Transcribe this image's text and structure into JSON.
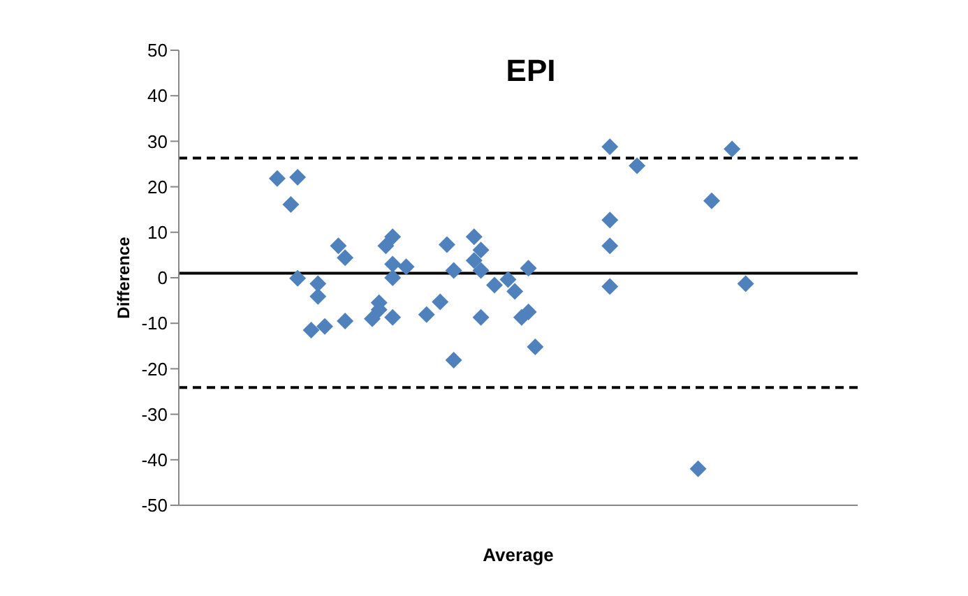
{
  "chart_data": {
    "type": "scatter",
    "title": "EPI",
    "xlabel": "Average",
    "ylabel": "Difference",
    "categories": [
      null,
      null,
      null,
      null,
      null,
      null,
      null,
      null,
      null,
      null,
      null,
      null,
      null,
      null,
      null,
      null,
      null,
      null,
      null,
      null,
      null,
      null,
      null,
      null,
      null,
      null,
      null,
      null,
      null,
      null,
      null,
      null,
      null,
      null,
      null,
      null,
      null,
      null,
      null,
      null,
      null,
      null,
      null,
      null,
      null,
      null,
      null,
      null,
      null,
      null,
      null,
      null,
      null,
      null,
      null,
      null,
      null,
      null,
      null,
      null,
      null,
      null,
      null,
      null,
      null,
      null,
      null,
      null,
      null,
      null,
      null,
      null,
      null,
      null,
      null,
      null,
      null,
      null,
      null,
      null,
      null,
      null,
      null,
      null,
      null,
      null,
      null,
      null,
      null,
      null,
      null,
      null,
      null,
      null,
      null,
      null,
      null,
      null,
      null,
      null
    ],
    "series": [
      {
        "color": "#4f81bd",
        "values": [
          null,
          null,
          null,
          null,
          null,
          null,
          null,
          null,
          null,
          null,
          null,
          null,
          null,
          null,
          21.8,
          null,
          16.1,
          22.1,
          null,
          -11.5,
          -1.3,
          -10.7,
          null,
          7.0,
          4.4,
          null,
          null,
          null,
          -9.0,
          -7.0,
          7.0,
          9.0,
          null,
          2.4,
          null,
          null,
          -8.1,
          null,
          -5.3,
          7.3,
          -18.1,
          null,
          null,
          9.0,
          6.1,
          null,
          -1.6,
          null,
          -0.4,
          -3.0,
          -8.7,
          2.1,
          -15.2,
          null,
          null,
          null,
          null,
          null,
          null,
          null,
          null,
          null,
          null,
          28.8,
          null,
          null,
          null,
          24.6,
          null,
          null,
          null,
          null,
          null,
          null,
          null,
          null,
          -42.0,
          null,
          16.9,
          null,
          null,
          28.3,
          null,
          -1.3,
          null,
          null,
          null,
          null,
          null,
          null,
          null,
          null,
          null,
          null,
          null,
          null,
          null,
          null,
          null,
          null
        ]
      },
      {
        "color": "#4f81bd",
        "values": [
          null,
          null,
          null,
          null,
          null,
          null,
          null,
          null,
          null,
          null,
          null,
          null,
          null,
          null,
          null,
          null,
          null,
          -0.1,
          null,
          null,
          -4.1,
          null,
          null,
          null,
          -9.5,
          null,
          null,
          null,
          null,
          -5.5,
          null,
          3.0,
          null,
          null,
          null,
          null,
          null,
          null,
          null,
          null,
          1.6,
          null,
          null,
          3.8,
          1.6,
          null,
          null,
          null,
          null,
          null,
          null,
          -7.5,
          null,
          null,
          null,
          null,
          null,
          null,
          null,
          null,
          null,
          null,
          null,
          12.7,
          null,
          null,
          null,
          null,
          null,
          null,
          null,
          null,
          null,
          null,
          null,
          null,
          null,
          null,
          null,
          null,
          null,
          null,
          null,
          null,
          null,
          null,
          null,
          null,
          null,
          null,
          null,
          null,
          null,
          null,
          null,
          null,
          null,
          null,
          null,
          null
        ]
      },
      {
        "color": "#4f81bd",
        "values": [
          null,
          null,
          null,
          null,
          null,
          null,
          null,
          null,
          null,
          null,
          null,
          null,
          null,
          null,
          null,
          null,
          null,
          null,
          null,
          null,
          null,
          null,
          null,
          null,
          null,
          null,
          null,
          null,
          null,
          null,
          null,
          0.0,
          null,
          null,
          null,
          null,
          null,
          null,
          null,
          null,
          null,
          null,
          null,
          null,
          -8.7,
          null,
          null,
          null,
          null,
          null,
          null,
          null,
          null,
          null,
          null,
          null,
          null,
          null,
          null,
          null,
          null,
          null,
          null,
          7.0,
          null,
          null,
          null,
          null,
          null,
          null,
          null,
          null,
          null,
          null,
          null,
          null,
          null,
          null,
          null,
          null,
          null,
          null,
          null,
          null,
          null,
          null,
          null,
          null,
          null,
          null,
          null,
          null,
          null,
          null,
          null,
          null,
          null,
          null,
          null,
          null
        ]
      },
      {
        "color": "#4f81bd",
        "values": [
          null,
          null,
          null,
          null,
          null,
          null,
          null,
          null,
          null,
          null,
          null,
          null,
          null,
          null,
          null,
          null,
          null,
          null,
          null,
          null,
          null,
          null,
          null,
          null,
          null,
          null,
          null,
          null,
          null,
          null,
          null,
          -8.7,
          null,
          null,
          null,
          null,
          null,
          null,
          null,
          null,
          null,
          null,
          null,
          null,
          null,
          null,
          null,
          null,
          null,
          null,
          null,
          null,
          null,
          null,
          null,
          null,
          null,
          null,
          null,
          null,
          null,
          null,
          null,
          -1.9,
          null,
          null,
          null,
          null,
          null,
          null,
          null,
          null,
          null,
          null,
          null,
          null,
          null,
          null,
          null,
          null,
          null,
          null,
          null,
          null,
          null,
          null,
          null,
          null,
          null,
          null,
          null,
          null,
          null,
          null,
          null,
          null,
          null,
          null,
          null,
          null
        ]
      }
    ],
    "ylim": [
      -50,
      50
    ],
    "yticks": [
      -50,
      -40,
      -30,
      -20,
      -10,
      0,
      10,
      20,
      30,
      40,
      50
    ],
    "marker": "diamond",
    "legend": false,
    "grid": false,
    "ref_lines": [
      {
        "axis": "y",
        "value": 1.0,
        "color": "#000000",
        "line_style": "solid"
      },
      {
        "axis": "y",
        "value": 26.3,
        "color": "#000000",
        "line_style": "dashed"
      },
      {
        "axis": "y",
        "value": -24.1,
        "color": "#000000",
        "line_style": "dashed"
      }
    ]
  }
}
